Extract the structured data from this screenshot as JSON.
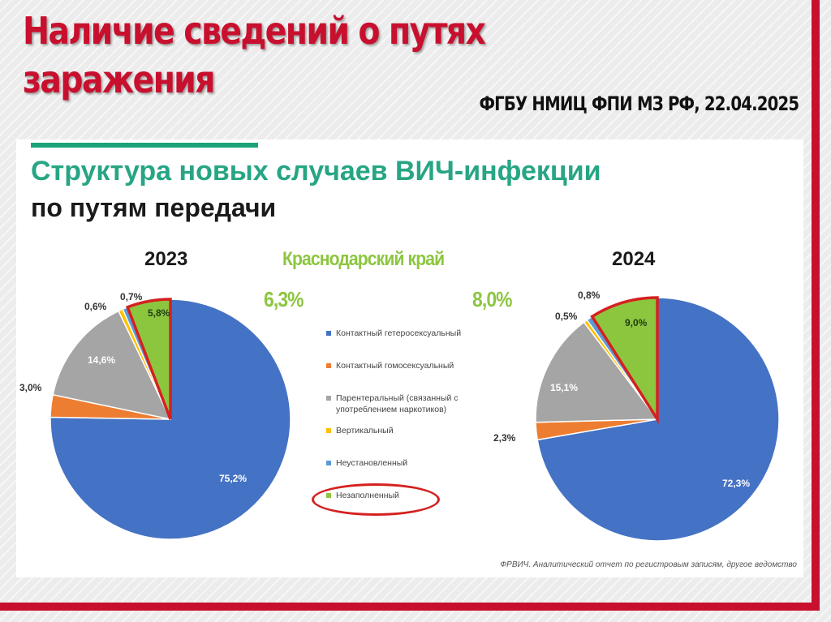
{
  "slide": {
    "title": "Наличие сведений о путях заражения",
    "source": "ФГБУ НМИЦ ФПИ МЗ РФ, 22.04.2025"
  },
  "panel": {
    "title_line1": "Структура новых случаев ВИЧ-инфекции",
    "title_line2": "по путям передачи",
    "region": "Краснодарский край",
    "footnote": "ФРВИЧ. Аналитический отчет по регистровым записям, другое ведомство"
  },
  "colors": {
    "hetero": "#4472c4",
    "homo": "#ed7d31",
    "parenteral": "#a5a5a5",
    "vertical": "#ffc000",
    "unknown": "#5b9bd5",
    "unfilled": "#8cc63f",
    "highlight": "#d62020"
  },
  "chart_data": [
    {
      "type": "pie",
      "title": "2023",
      "highlight_total": "6,3%",
      "slices": [
        {
          "label": "Контактный гетеросексуальный",
          "value": 75.2,
          "text": "75,2%",
          "color_key": "hetero"
        },
        {
          "label": "Контактный гомосексуальный",
          "value": 3.0,
          "text": "3,0%",
          "color_key": "homo"
        },
        {
          "label": "Парентеральный (связанный с употреблением наркотиков)",
          "value": 14.6,
          "text": "14,6%",
          "color_key": "parenteral"
        },
        {
          "label": "Вертикальный",
          "value": 0.6,
          "text": "0,6%",
          "color_key": "vertical"
        },
        {
          "label": "Неустановленный",
          "value": 0.7,
          "text": "0,7%",
          "color_key": "unknown"
        },
        {
          "label": "Незаполненный",
          "value": 5.8,
          "text": "5,8%",
          "color_key": "unfilled"
        }
      ]
    },
    {
      "type": "pie",
      "title": "2024",
      "highlight_total": "8,0%",
      "slices": [
        {
          "label": "Контактный гетеросексуальный",
          "value": 72.3,
          "text": "72,3%",
          "color_key": "hetero"
        },
        {
          "label": "Контактный гомосексуальный",
          "value": 2.3,
          "text": "2,3%",
          "color_key": "homo"
        },
        {
          "label": "Парентеральный (связанный с употреблением наркотиков)",
          "value": 15.1,
          "text": "15,1%",
          "color_key": "parenteral"
        },
        {
          "label": "Вертикальный",
          "value": 0.5,
          "text": "0,5%",
          "color_key": "vertical"
        },
        {
          "label": "Неустановленный",
          "value": 0.8,
          "text": "0,8%",
          "color_key": "unknown"
        },
        {
          "label": "Незаполненный",
          "value": 9.0,
          "text": "9,0%",
          "color_key": "unfilled"
        }
      ]
    }
  ],
  "legend": [
    {
      "label": "Контактный гетеросексуальный",
      "color_key": "hetero"
    },
    {
      "label": "Контактный гомосексуальный",
      "color_key": "homo"
    },
    {
      "label": "Парентеральный (связанный с употреблением наркотиков)",
      "color_key": "parenteral"
    },
    {
      "label": "Вертикальный",
      "color_key": "vertical"
    },
    {
      "label": "Неустановленный",
      "color_key": "unknown"
    },
    {
      "label": "Незаполненный",
      "color_key": "unfilled"
    }
  ]
}
